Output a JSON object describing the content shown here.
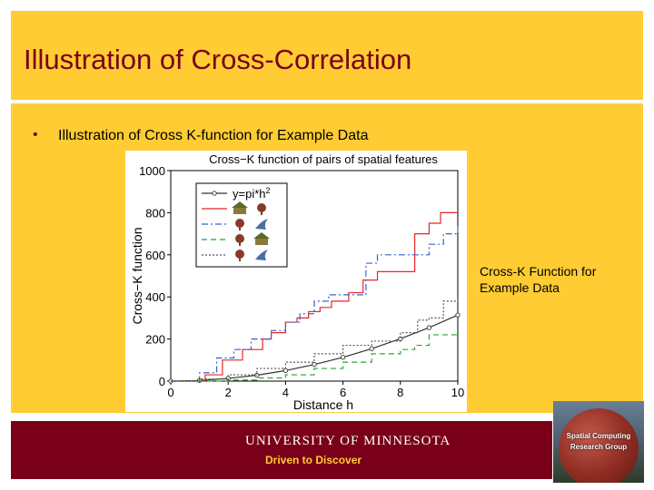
{
  "slide": {
    "title": "Illustration of Cross-Correlation",
    "bullet": "Illustration of Cross K-function for Example Data",
    "side_caption": "Cross-K Function for Example Data",
    "footer_university": "UNIVERSITY OF MINNESOTA",
    "footer_tagline": "Driven to Discover",
    "logo_line1": "Spatial Computing",
    "logo_line2": "Research Group"
  },
  "colors": {
    "maroon": "#7a0019",
    "gold": "#ffcc33"
  },
  "chart_data": {
    "type": "line",
    "title": "Cross−K function of pairs of spatial features",
    "xlabel": "Distance h",
    "ylabel": "Cross−K function",
    "xlim": [
      0,
      10
    ],
    "ylim": [
      0,
      1000
    ],
    "xticks": [
      0,
      2,
      4,
      6,
      8,
      10
    ],
    "yticks": [
      0,
      200,
      400,
      600,
      800,
      1000
    ],
    "legend_position": "top-left",
    "series": [
      {
        "label": "y=pi*h^2",
        "color": "#333333",
        "style": "solid-circles",
        "x": [
          0,
          1,
          2,
          3,
          4,
          5,
          6,
          7,
          8,
          9,
          10
        ],
        "y": [
          0,
          3,
          13,
          28,
          50,
          79,
          113,
          154,
          201,
          254,
          314
        ]
      },
      {
        "icons": [
          "house-icon",
          "tree-icon"
        ],
        "color": "#e8262b",
        "style": "solid",
        "x": [
          0,
          1.2,
          1.8,
          2.5,
          3.2,
          3.5,
          4,
          4.4,
          4.8,
          5.2,
          5.6,
          6.2,
          6.7,
          7.2,
          8.5,
          9,
          9.4,
          10
        ],
        "y": [
          0,
          30,
          100,
          150,
          200,
          230,
          280,
          300,
          330,
          350,
          380,
          420,
          480,
          520,
          700,
          750,
          800,
          800
        ]
      },
      {
        "icons": [
          "tree-icon",
          "bird-icon"
        ],
        "color": "#3c5fcc",
        "style": "dashdot",
        "x": [
          0,
          1,
          1.6,
          2.2,
          2.8,
          3.5,
          4,
          4.5,
          5,
          5.5,
          6,
          6.8,
          7.2,
          8.2,
          9,
          9.5,
          10
        ],
        "y": [
          0,
          40,
          110,
          150,
          200,
          240,
          280,
          320,
          380,
          410,
          410,
          560,
          600,
          600,
          650,
          700,
          750
        ]
      },
      {
        "icons": [
          "tree-icon",
          "house-icon"
        ],
        "color": "#2aa52a",
        "style": "dashed",
        "x": [
          0,
          2,
          3,
          4,
          5,
          6,
          7,
          8,
          8.5,
          9,
          10
        ],
        "y": [
          0,
          5,
          15,
          30,
          60,
          90,
          130,
          150,
          170,
          220,
          220
        ]
      },
      {
        "icons": [
          "tree-icon",
          "bird-icon"
        ],
        "color": "#555555",
        "style": "dotted",
        "x": [
          0,
          1,
          2,
          3,
          4,
          5,
          6,
          7,
          8,
          8.6,
          9,
          9.5,
          10
        ],
        "y": [
          0,
          10,
          30,
          60,
          90,
          130,
          170,
          190,
          230,
          290,
          300,
          380,
          390
        ]
      }
    ]
  }
}
